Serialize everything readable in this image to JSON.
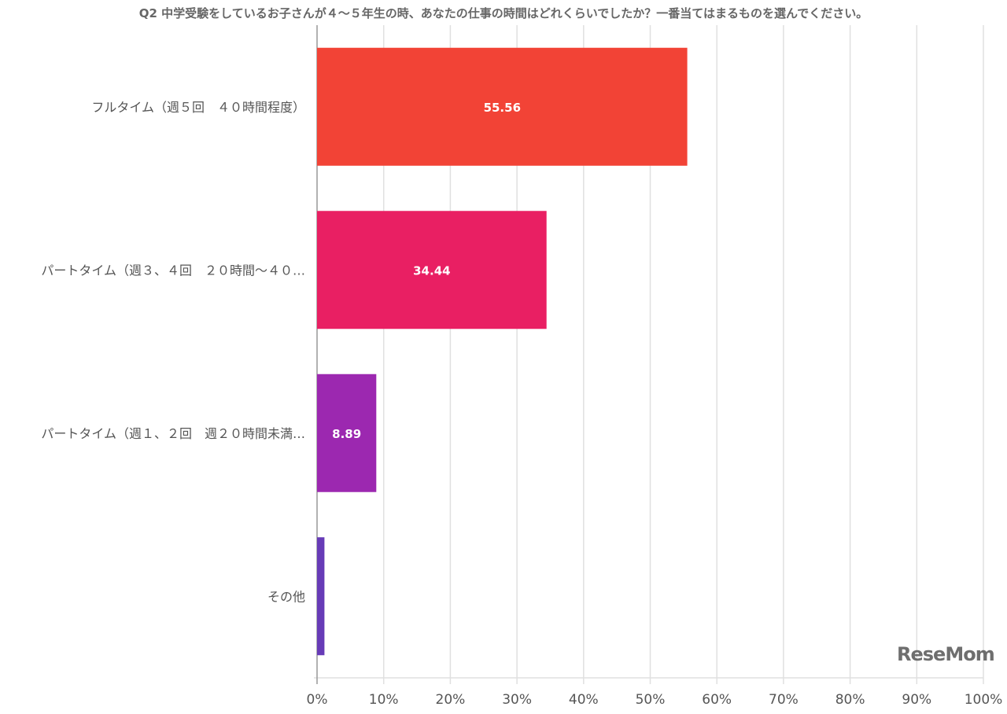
{
  "chart_data": {
    "type": "bar",
    "orientation": "horizontal",
    "title": "Q2 中学受験をしているお子さんが４〜５年生の時、あなたの仕事の時間はどれくらいでしたか？一番当てはまるものを選んでください。",
    "categories": [
      "フルタイム（週５回　４０時間程度）",
      "パートタイム（週３、４回　２０時間〜４０…",
      "パートタイム（週１、２回　週２０時間未満…",
      "その他"
    ],
    "values": [
      55.56,
      34.44,
      8.89,
      1.11
    ],
    "data_labels": [
      "55.56",
      "34.44",
      "8.89",
      ""
    ],
    "colors": [
      "#f24336",
      "#e91f63",
      "#9c28b0",
      "#673bb7"
    ],
    "xlim": [
      0,
      100
    ],
    "x_ticks": [
      "0%",
      "10%",
      "20%",
      "30%",
      "40%",
      "50%",
      "60%",
      "70%",
      "80%",
      "90%",
      "100%"
    ],
    "grid": true,
    "legend": "none"
  },
  "watermark": "ReseMom"
}
